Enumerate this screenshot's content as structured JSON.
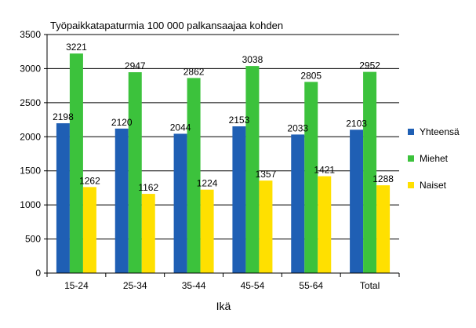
{
  "chart_data": {
    "type": "bar",
    "title": "Työpaikkatapaturmia 100 000 palkansaajaa kohden",
    "xlabel": "Ikä",
    "ylabel": "",
    "ylim": [
      0,
      3500
    ],
    "yticks": [
      0,
      500,
      1000,
      1500,
      2000,
      2500,
      3000,
      3500
    ],
    "grid": true,
    "legend_position": "right",
    "categories": [
      "15-24",
      "25-34",
      "35-44",
      "45-54",
      "55-64",
      "Total"
    ],
    "series": [
      {
        "name": "Yhteensä",
        "color": "#1f5fb4",
        "values": [
          2198,
          2120,
          2044,
          2153,
          2033,
          2103
        ]
      },
      {
        "name": "Miehet",
        "color": "#3cc23c",
        "values": [
          3221,
          2947,
          2862,
          3038,
          2805,
          2952
        ]
      },
      {
        "name": "Naiset",
        "color": "#ffe000",
        "values": [
          1262,
          1162,
          1224,
          1357,
          1421,
          1288
        ]
      }
    ]
  }
}
